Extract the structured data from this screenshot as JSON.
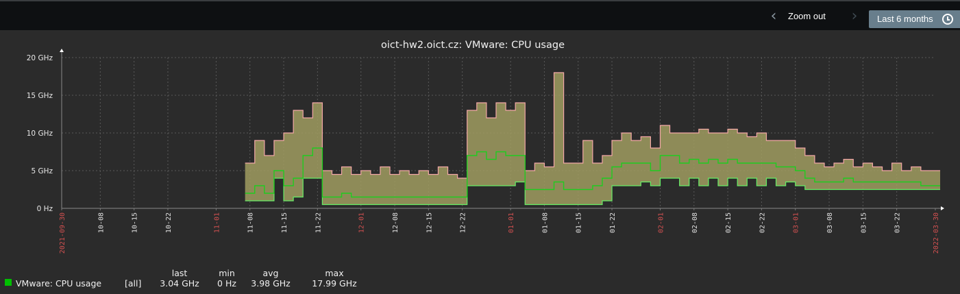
{
  "toolbar": {
    "zoom_out_label": "Zoom out",
    "period_label": "Last 6 months",
    "prev_icon": "chevron-left-icon",
    "next_icon": "chevron-right-icon",
    "clock_icon": "clock-icon"
  },
  "colors": {
    "max": "#f4a8a8",
    "avg": "#1fcc1f",
    "min": "#66ee66",
    "fill": "#a09c60",
    "major_tick": "#d05050",
    "legend_swatch": "#00c000"
  },
  "legend": {
    "headers": {
      "last": "last",
      "min": "min",
      "avg": "avg",
      "max": "max"
    },
    "item": {
      "name": "VMware: CPU usage",
      "func": "[all]",
      "last": "3.04 GHz",
      "min": "0 Hz",
      "avg": "3.98 GHz",
      "max": "17.99 GHz"
    }
  },
  "chart_data": {
    "type": "line",
    "title": "oict-hw2.oict.cz: VMware: CPU usage",
    "xlabel": "",
    "ylabel": "",
    "x_unit": "days since 2021-09-30",
    "xlim": [
      0,
      181
    ],
    "ylim": [
      0,
      20
    ],
    "y_ticks": [
      {
        "v": 0,
        "label": "0 Hz"
      },
      {
        "v": 5,
        "label": "5 GHz"
      },
      {
        "v": 10,
        "label": "10 GHz"
      },
      {
        "v": 15,
        "label": "15 GHz"
      },
      {
        "v": 20,
        "label": "20 GHz"
      }
    ],
    "x_ticks": [
      {
        "d": 0,
        "label": "2021-09-30",
        "major": true
      },
      {
        "d": 8,
        "label": "10-08"
      },
      {
        "d": 15,
        "label": "10-15"
      },
      {
        "d": 22,
        "label": "10-22"
      },
      {
        "d": 32,
        "label": "11-01",
        "major": true
      },
      {
        "d": 39,
        "label": "11-08"
      },
      {
        "d": 46,
        "label": "11-15"
      },
      {
        "d": 53,
        "label": "11-22"
      },
      {
        "d": 62,
        "label": "12-01",
        "major": true
      },
      {
        "d": 69,
        "label": "12-08"
      },
      {
        "d": 76,
        "label": "12-15"
      },
      {
        "d": 83,
        "label": "12-22"
      },
      {
        "d": 93,
        "label": "01-01",
        "major": true
      },
      {
        "d": 100,
        "label": "01-08"
      },
      {
        "d": 107,
        "label": "01-15"
      },
      {
        "d": 114,
        "label": "01-22"
      },
      {
        "d": 124,
        "label": "02-01",
        "major": true
      },
      {
        "d": 131,
        "label": "02-08"
      },
      {
        "d": 138,
        "label": "02-15"
      },
      {
        "d": 145,
        "label": "02-22"
      },
      {
        "d": 152,
        "label": "03-01",
        "major": true
      },
      {
        "d": 159,
        "label": "03-08"
      },
      {
        "d": 166,
        "label": "03-15"
      },
      {
        "d": 173,
        "label": "03-22"
      },
      {
        "d": 181,
        "label": "2022-03-30",
        "major": true
      }
    ],
    "grid": true,
    "x": [
      38,
      40,
      42,
      44,
      46,
      48,
      50,
      52,
      54,
      56,
      58,
      60,
      62,
      64,
      66,
      68,
      70,
      72,
      74,
      76,
      78,
      80,
      82,
      84,
      86,
      88,
      90,
      92,
      94,
      96,
      98,
      100,
      102,
      104,
      106,
      108,
      110,
      112,
      114,
      116,
      118,
      120,
      122,
      124,
      126,
      128,
      130,
      132,
      134,
      136,
      138,
      140,
      142,
      144,
      146,
      148,
      150,
      152,
      154,
      156,
      158,
      160,
      162,
      164,
      166,
      168,
      170,
      172,
      174,
      176,
      178,
      180
    ],
    "series": [
      {
        "name": "max",
        "values": [
          6,
          9,
          7,
          9,
          10,
          13,
          12,
          14,
          5,
          4.5,
          5.5,
          4.5,
          5,
          4.5,
          5.5,
          4.5,
          5,
          4.5,
          5,
          4.5,
          5.5,
          4.5,
          4,
          13,
          14,
          12,
          14,
          13,
          14,
          5,
          6,
          5.5,
          18,
          6,
          6,
          9,
          6,
          7,
          9,
          10,
          9,
          9.5,
          8,
          11,
          10,
          10,
          10,
          10.5,
          10,
          10,
          10.5,
          10,
          9.5,
          10,
          9,
          9,
          9,
          8,
          7,
          6,
          5.5,
          6,
          6.5,
          5.5,
          6,
          5.5,
          5,
          6,
          5,
          5.5,
          5,
          5
        ]
      },
      {
        "name": "avg",
        "values": [
          2,
          3,
          2,
          5,
          3,
          4,
          7,
          8,
          1.5,
          1.5,
          2,
          1.5,
          1.5,
          1.5,
          1.5,
          1.5,
          1.5,
          1.5,
          1.5,
          1.5,
          1.5,
          1.5,
          1.5,
          7,
          7.5,
          6.5,
          7.5,
          7,
          7,
          2.5,
          2.5,
          2.5,
          3.5,
          2.5,
          2.5,
          2.5,
          3,
          4,
          5.5,
          6,
          6,
          6,
          5,
          7,
          7,
          6,
          6.5,
          6,
          6.5,
          6,
          6.5,
          6,
          6,
          6,
          6,
          5.5,
          5.5,
          5,
          4,
          3.5,
          3.5,
          3.5,
          4,
          3.5,
          3.5,
          3.5,
          3.5,
          3.5,
          3.5,
          3.5,
          3,
          3
        ]
      },
      {
        "name": "min",
        "values": [
          1,
          1,
          1,
          4,
          1,
          1.5,
          4,
          4,
          0.5,
          0.5,
          0.5,
          0.5,
          0.5,
          0.5,
          0.5,
          0.5,
          0.5,
          0.5,
          0.5,
          0.5,
          0.5,
          0.5,
          0.5,
          3,
          3,
          3,
          3,
          3,
          3.5,
          0.5,
          0.5,
          0.5,
          0.5,
          0.5,
          0.5,
          0.5,
          0.5,
          1,
          3,
          3,
          3,
          3.5,
          3,
          4,
          4,
          3,
          4,
          3,
          4,
          3,
          4,
          3,
          4,
          3,
          4,
          3,
          3.5,
          3,
          2.5,
          2.5,
          2.5,
          2.5,
          2.5,
          2.5,
          2.5,
          2.5,
          2.5,
          2.5,
          2.5,
          2.5,
          2.5,
          2.5
        ]
      }
    ]
  }
}
